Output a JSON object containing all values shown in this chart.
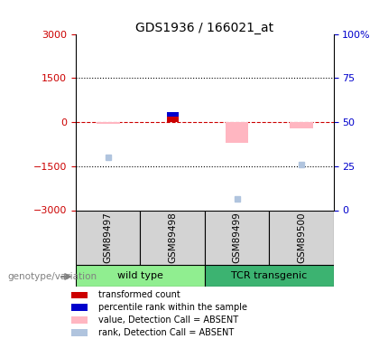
{
  "title": "GDS1936 / 166021_at",
  "samples": [
    "GSM89497",
    "GSM89498",
    "GSM89499",
    "GSM89500"
  ],
  "groups": [
    {
      "name": "wild type",
      "color": "#90EE90",
      "samples": [
        0,
        1
      ]
    },
    {
      "name": "TCR transgenic",
      "color": "#3CB371",
      "samples": [
        2,
        3
      ]
    }
  ],
  "ylim": [
    -3000,
    3000
  ],
  "yticks_left": [
    -3000,
    -1500,
    0,
    1500,
    3000
  ],
  "y_right_map": {
    "0": -3000,
    "25": -1500,
    "50": 0,
    "75": 1500,
    "100": 3000
  },
  "right_tick_labels": [
    "0",
    "25",
    "50",
    "75",
    "100%"
  ],
  "transformed_count": {
    "GSM89497": null,
    "GSM89498": 200,
    "GSM89499": null,
    "GSM89500": null
  },
  "percentile_rank": {
    "GSM89497": null,
    "GSM89498": 350,
    "GSM89499": null,
    "GSM89500": null
  },
  "value_absent": {
    "GSM89497": -70,
    "GSM89498": null,
    "GSM89499": -700,
    "GSM89500": -200
  },
  "rank_absent": {
    "GSM89497": -1200,
    "GSM89498": null,
    "GSM89499": -2600,
    "GSM89500": -1450
  },
  "bar_width": 0.3,
  "colors": {
    "transformed_count": "#CC0000",
    "percentile_rank": "#0000CC",
    "value_absent": "#FFB6C1",
    "rank_absent": "#B0C4DE",
    "zero_line": "#CC0000",
    "sample_bg": "#D3D3D3",
    "left_axis_color": "#CC0000",
    "right_axis_color": "#0000CC"
  },
  "legend_items": [
    {
      "label": "transformed count",
      "color": "#CC0000"
    },
    {
      "label": "percentile rank within the sample",
      "color": "#0000CC"
    },
    {
      "label": "value, Detection Call = ABSENT",
      "color": "#FFB6C1"
    },
    {
      "label": "rank, Detection Call = ABSENT",
      "color": "#B0C4DE"
    }
  ],
  "genotype_label": "genotype/variation"
}
